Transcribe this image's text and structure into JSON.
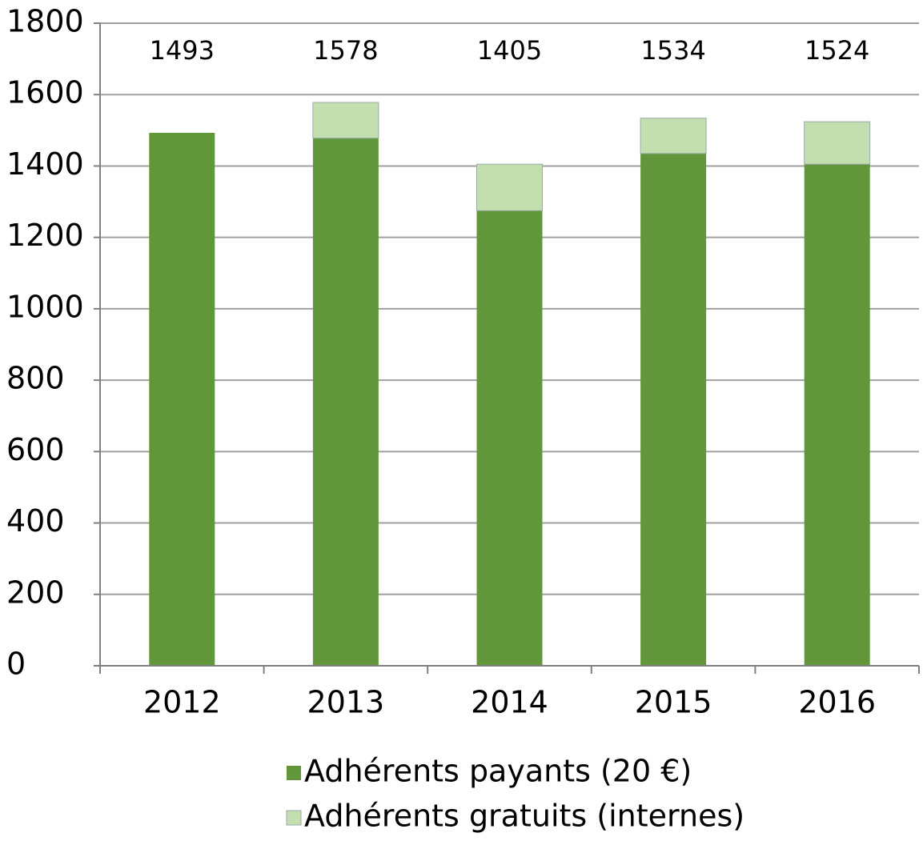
{
  "chart_data": {
    "type": "stacked_bar",
    "categories": [
      "2012",
      "2013",
      "2014",
      "2015",
      "2016"
    ],
    "series": [
      {
        "name": "Adhérents payants (20 €)",
        "color": "#61963b",
        "values": [
          1493,
          1478,
          1275,
          1435,
          1405
        ]
      },
      {
        "name": "Adhérents gratuits (internes)",
        "color": "#c3dfb0",
        "values": [
          0,
          100,
          130,
          99,
          119
        ]
      }
    ],
    "totals": [
      1493,
      1578,
      1405,
      1534,
      1524
    ],
    "ylim": [
      0,
      1800
    ],
    "yticks": [
      0,
      200,
      400,
      600,
      800,
      1000,
      1200,
      1400,
      1600,
      1800
    ],
    "grid": true,
    "legend": "bottom"
  }
}
